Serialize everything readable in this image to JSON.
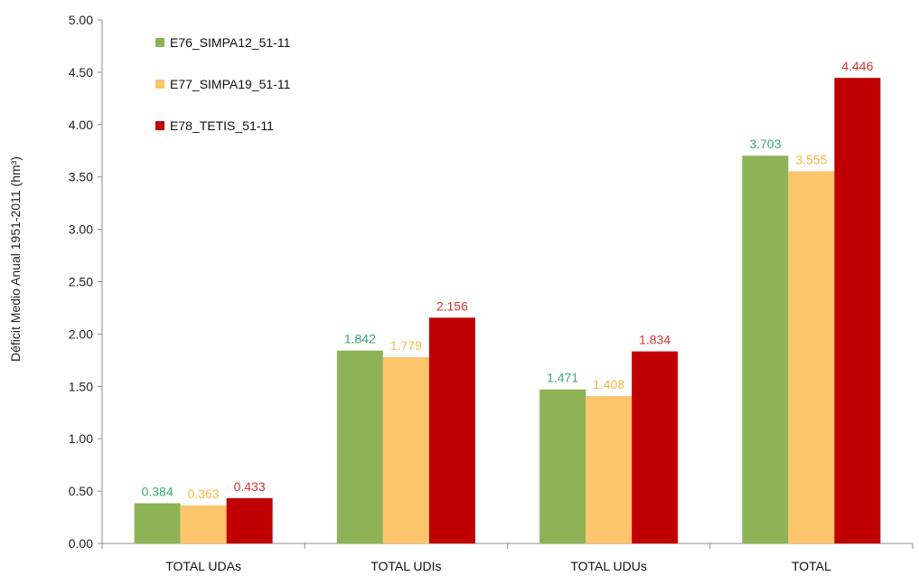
{
  "chart_data": {
    "type": "bar",
    "ylabel": "Déficit Medio Anual 1951-2011 (hm³)",
    "ylim": [
      0,
      5
    ],
    "yticks": [
      "0.00",
      "0.50",
      "1.00",
      "1.50",
      "2.00",
      "2.50",
      "3.00",
      "3.50",
      "4.00",
      "4.50",
      "5.00"
    ],
    "categories": [
      "TOTAL UDAs",
      "TOTAL UDIs",
      "TOTAL UDUs",
      "TOTAL"
    ],
    "legend_position": "top-left",
    "grid": false,
    "series": [
      {
        "name": "E76_SIMPA12_51-11",
        "color": "#8db356",
        "label_color": "#3aa876",
        "values": [
          0.384,
          1.842,
          1.471,
          3.703
        ],
        "labels": [
          "0.384",
          "1.842",
          "1.471",
          "3.703"
        ]
      },
      {
        "name": "E77_SIMPA19_51-11",
        "color": "#fcc46b",
        "label_color": "#f5b843",
        "values": [
          0.363,
          1.779,
          1.408,
          3.555
        ],
        "labels": [
          "0.363",
          "1.779",
          "1.408",
          "3.555"
        ]
      },
      {
        "name": "E78_TETIS_51-11",
        "color": "#c00000",
        "label_color": "#d9342c",
        "values": [
          0.433,
          2.156,
          1.834,
          4.446
        ],
        "labels": [
          "0.433",
          "2.156",
          "1.834",
          "4.446"
        ]
      }
    ]
  }
}
